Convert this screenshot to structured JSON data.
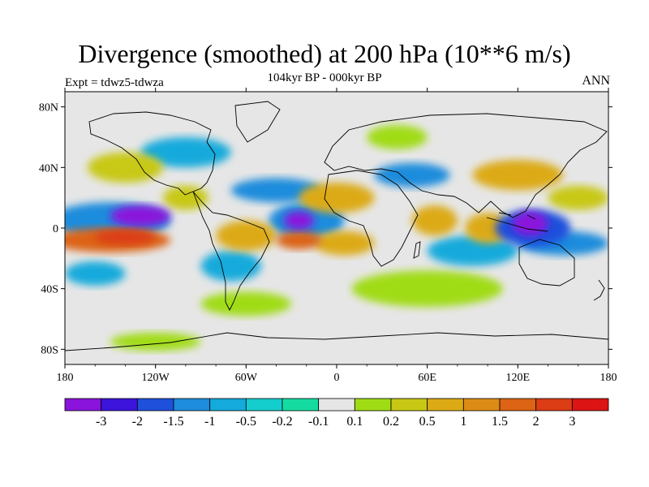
{
  "title": "Divergence (smoothed) at 200 hPa (10**6 m/s)",
  "subtitle": "104kyr BP - 000kyr BP",
  "experiment_label": "Expt = tdwz5-tdwza",
  "period_label": "ANN",
  "chart_data": {
    "type": "heatmap",
    "projection": "cylindrical-equidistant",
    "x_ticks": [
      {
        "lon": -180,
        "label": "180"
      },
      {
        "lon": -120,
        "label": "120W"
      },
      {
        "lon": -60,
        "label": "60W"
      },
      {
        "lon": 0,
        "label": "0"
      },
      {
        "lon": 60,
        "label": "60E"
      },
      {
        "lon": 120,
        "label": "120E"
      },
      {
        "lon": 180,
        "label": "180"
      }
    ],
    "y_ticks": [
      {
        "lat": 80,
        "label": "80N"
      },
      {
        "lat": 40,
        "label": "40N"
      },
      {
        "lat": 0,
        "label": "0"
      },
      {
        "lat": -40,
        "label": "40S"
      },
      {
        "lat": -80,
        "label": "80S"
      }
    ],
    "xlim": [
      -180,
      180
    ],
    "ylim": [
      -90,
      90
    ],
    "colorbar": {
      "colors": [
        "#8a14dc",
        "#3c14dc",
        "#1e50dc",
        "#1e8cdc",
        "#14aadc",
        "#14cdcd",
        "#14dca0",
        "#e6e6e6",
        "#a0dc14",
        "#c8c814",
        "#dcaa14",
        "#dc8c14",
        "#dc6414",
        "#dc3c14",
        "#dc1414"
      ],
      "labels": [
        "-3",
        "-2",
        "-1.5",
        "-1",
        "-0.5",
        "-0.2",
        "-0.1",
        "0.1",
        "0.2",
        "0.5",
        "1",
        "1.5",
        "2",
        "3"
      ]
    },
    "blobs": [
      {
        "lon": -130,
        "lat": 8,
        "rx": 20,
        "ry": 7,
        "level": -3
      },
      {
        "lon": -150,
        "lat": 5,
        "rx": 40,
        "ry": 12,
        "level": -1
      },
      {
        "lon": -40,
        "lat": 25,
        "rx": 30,
        "ry": 8,
        "level": -1
      },
      {
        "lon": -25,
        "lat": 5,
        "rx": 10,
        "ry": 6,
        "level": -3
      },
      {
        "lon": -20,
        "lat": 5,
        "rx": 25,
        "ry": 12,
        "level": -1
      },
      {
        "lon": 128,
        "lat": 3,
        "rx": 12,
        "ry": 8,
        "level": -3
      },
      {
        "lon": 130,
        "lat": 0,
        "rx": 25,
        "ry": 12,
        "level": -1.5
      },
      {
        "lon": 150,
        "lat": -10,
        "rx": 30,
        "ry": 8,
        "level": -1
      },
      {
        "lon": 50,
        "lat": 35,
        "rx": 25,
        "ry": 8,
        "level": -1
      },
      {
        "lon": 90,
        "lat": -15,
        "rx": 30,
        "ry": 10,
        "level": -0.5
      },
      {
        "lon": -100,
        "lat": 50,
        "rx": 30,
        "ry": 10,
        "level": -0.5
      },
      {
        "lon": -160,
        "lat": -30,
        "rx": 20,
        "ry": 8,
        "level": -0.5
      },
      {
        "lon": -70,
        "lat": -25,
        "rx": 20,
        "ry": 10,
        "level": -0.5
      },
      {
        "lon": -150,
        "lat": -8,
        "rx": 40,
        "ry": 8,
        "level": 2
      },
      {
        "lon": -140,
        "lat": -6,
        "rx": 20,
        "ry": 5,
        "level": 3
      },
      {
        "lon": -60,
        "lat": -5,
        "rx": 20,
        "ry": 10,
        "level": 1
      },
      {
        "lon": -25,
        "lat": -8,
        "rx": 15,
        "ry": 6,
        "level": 2
      },
      {
        "lon": 5,
        "lat": -10,
        "rx": 20,
        "ry": 8,
        "level": 1
      },
      {
        "lon": 0,
        "lat": 20,
        "rx": 25,
        "ry": 10,
        "level": 1
      },
      {
        "lon": 65,
        "lat": 5,
        "rx": 15,
        "ry": 10,
        "level": 1
      },
      {
        "lon": 100,
        "lat": 0,
        "rx": 15,
        "ry": 10,
        "level": 1
      },
      {
        "lon": 120,
        "lat": 35,
        "rx": 30,
        "ry": 10,
        "level": 1
      },
      {
        "lon": -140,
        "lat": 40,
        "rx": 25,
        "ry": 10,
        "level": 0.5
      },
      {
        "lon": -100,
        "lat": 20,
        "rx": 15,
        "ry": 8,
        "level": 0.5
      },
      {
        "lon": 160,
        "lat": 20,
        "rx": 20,
        "ry": 8,
        "level": 0.5
      },
      {
        "lon": 60,
        "lat": -40,
        "rx": 50,
        "ry": 12,
        "level": 0.2
      },
      {
        "lon": -60,
        "lat": -50,
        "rx": 30,
        "ry": 8,
        "level": 0.2
      },
      {
        "lon": -120,
        "lat": -75,
        "rx": 30,
        "ry": 6,
        "level": 0.2
      },
      {
        "lon": 40,
        "lat": 60,
        "rx": 20,
        "ry": 8,
        "level": 0.2
      }
    ]
  }
}
